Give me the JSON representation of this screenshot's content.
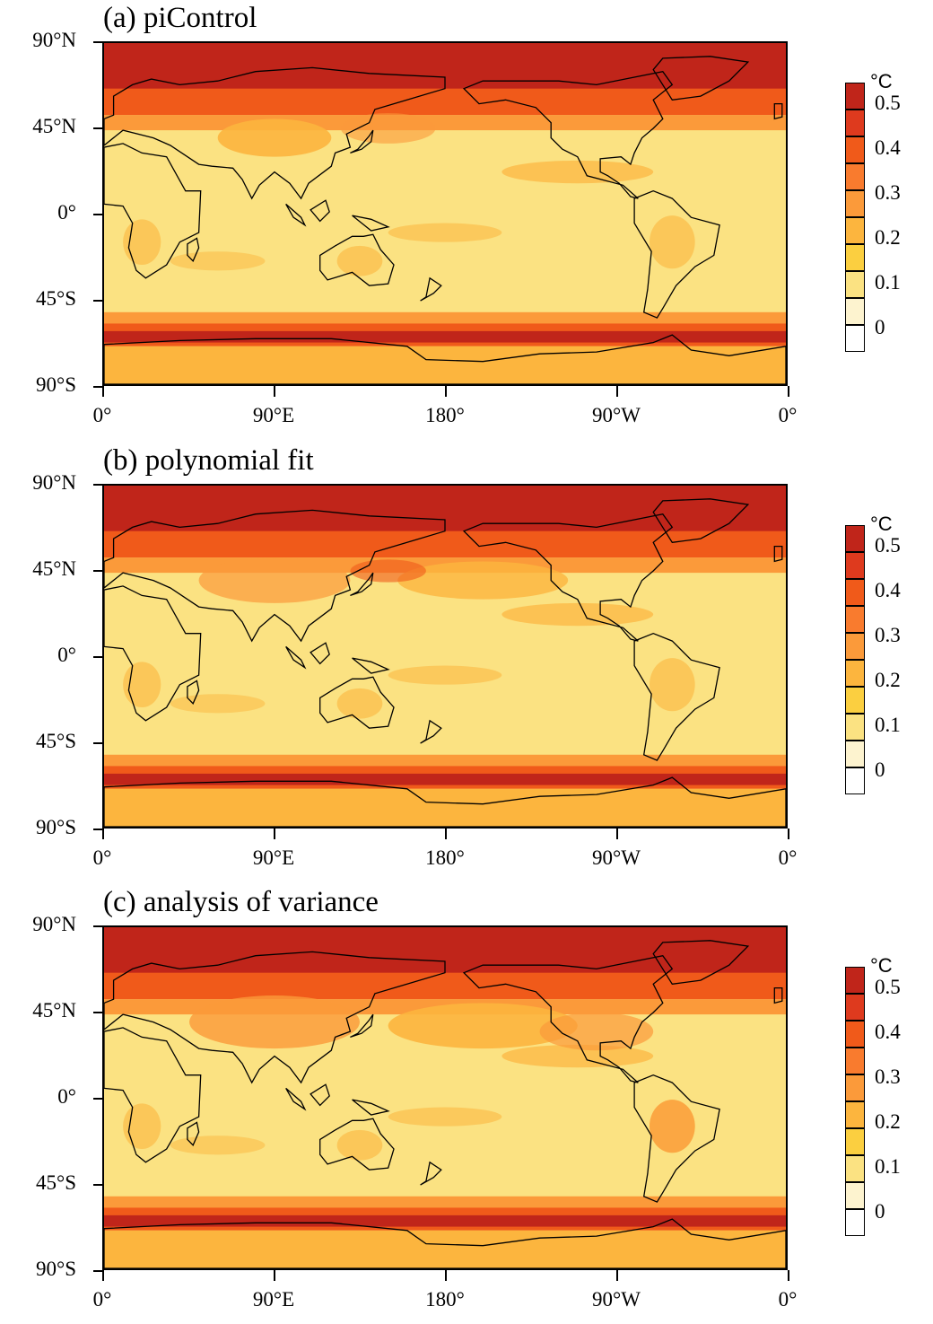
{
  "panels": [
    {
      "title": "(a) piControl"
    },
    {
      "title": "(b) polynomial fit"
    },
    {
      "title": "(c) analysis of variance"
    }
  ],
  "lat_labels": [
    "90°N",
    "45°N",
    "0°",
    "45°S",
    "90°S"
  ],
  "lon_labels": [
    "0°",
    "90°E",
    "180°",
    "90°W",
    "0°"
  ],
  "colorbar": {
    "unit": "°C",
    "labels": [
      "0.5",
      "0.4",
      "0.3",
      "0.2",
      "0.1",
      "0"
    ],
    "colors": [
      "#c0251a",
      "#de3a1e",
      "#f05a1a",
      "#f97b2e",
      "#fb9a3a",
      "#fcb53e",
      "#fbcf40",
      "#fbe282",
      "#fdf3cf",
      "#ffffff"
    ]
  },
  "map_colors": {
    "background": "#fbe282",
    "ring_high": "#c0251a",
    "ring_mid": "#f05a1a",
    "ring_low": "#fb9a3a",
    "land_mid": "#fcb53e",
    "coast": "#000000"
  }
}
